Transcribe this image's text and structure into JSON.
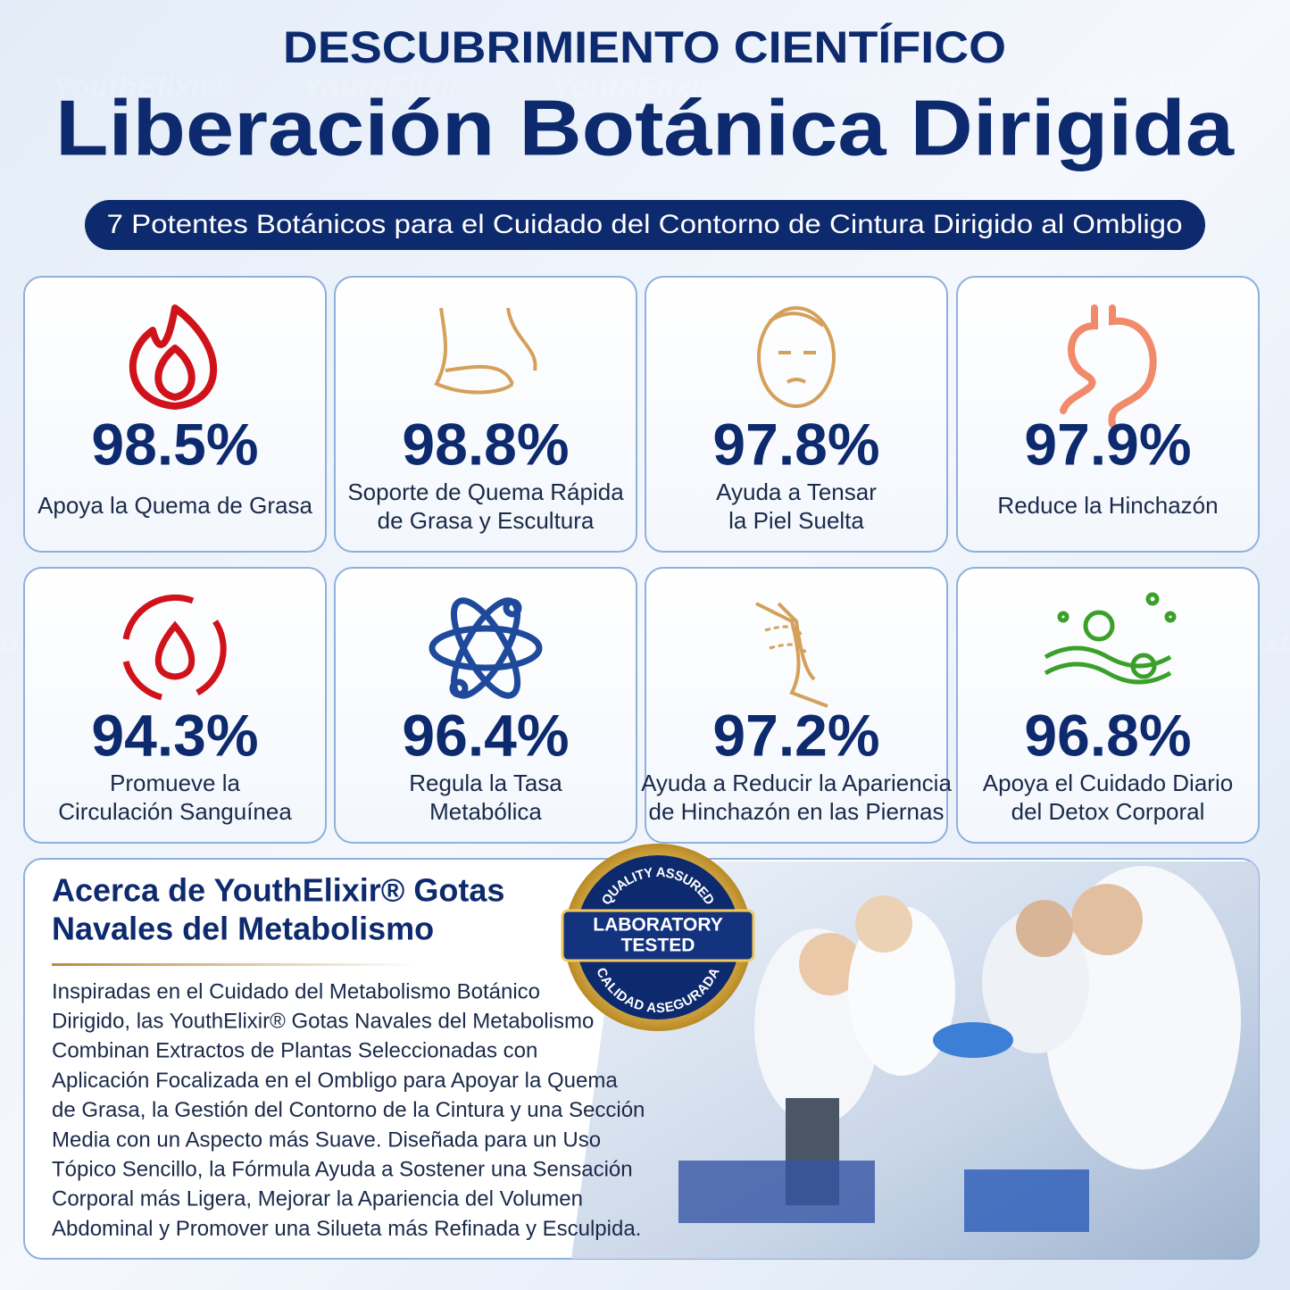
{
  "header": {
    "kicker": "DESCUBRIMIENTO CIENTÍFICO",
    "title": "Liberación Botánica Dirigida",
    "subtitle": "7 Potentes Botánicos para el Cuidado del Contorno de Cintura Dirigido al Ombligo"
  },
  "watermark": "YouthElixir®",
  "cards": [
    {
      "stat": "98.5%",
      "label": [
        "Apoya la Quema de Grasa"
      ]
    },
    {
      "stat": "98.8%",
      "label": [
        "Soporte de Quema Rápida",
        "de Grasa y Escultura"
      ]
    },
    {
      "stat": "97.8%",
      "label": [
        "Ayuda a Tensar",
        "la Piel Suelta"
      ]
    },
    {
      "stat": "97.9%",
      "label": [
        "Reduce la Hinchazón"
      ]
    },
    {
      "stat": "94.3%",
      "label": [
        "Promueve la",
        "Circulación Sanguínea"
      ]
    },
    {
      "stat": "96.4%",
      "label": [
        "Regula la Tasa",
        "Metabólica"
      ]
    },
    {
      "stat": "97.2%",
      "label": [
        "Ayuda a Reducir la Apariencia",
        "de Hinchazón en las Piernas"
      ]
    },
    {
      "stat": "96.8%",
      "label": [
        "Apoya el Cuidado Diario",
        "del Detox Corporal"
      ]
    }
  ],
  "about": {
    "title": [
      "Acerca de YouthElixir® Gotas",
      "Navales del Metabolismo"
    ],
    "body": [
      "Inspiradas en el Cuidado del Metabolismo Botánico",
      "Dirigido, las YouthElixir® Gotas Navales del Metabolismo",
      "Combinan Extractos de Plantas Seleccionadas con",
      "Aplicación Focalizada en el Ombligo para Apoyar la Quema",
      "de Grasa, la Gestión del Contorno de la Cintura y una Sección",
      "Media con un Aspecto más Suave. Diseñada para un Uso",
      "Tópico Sencillo, la Fórmula Ayuda a Sostener una Sensación",
      "Corporal más Ligera, Mejorar la Apariencia del Volumen",
      "Abdominal y Promover una Silueta más Refinada y Esculpida."
    ],
    "badge": {
      "top": "QUALITY ASSURED",
      "main": [
        "LABORATORY",
        "TESTED"
      ],
      "bottom": "CALIDAD ASEGURADA"
    }
  }
}
